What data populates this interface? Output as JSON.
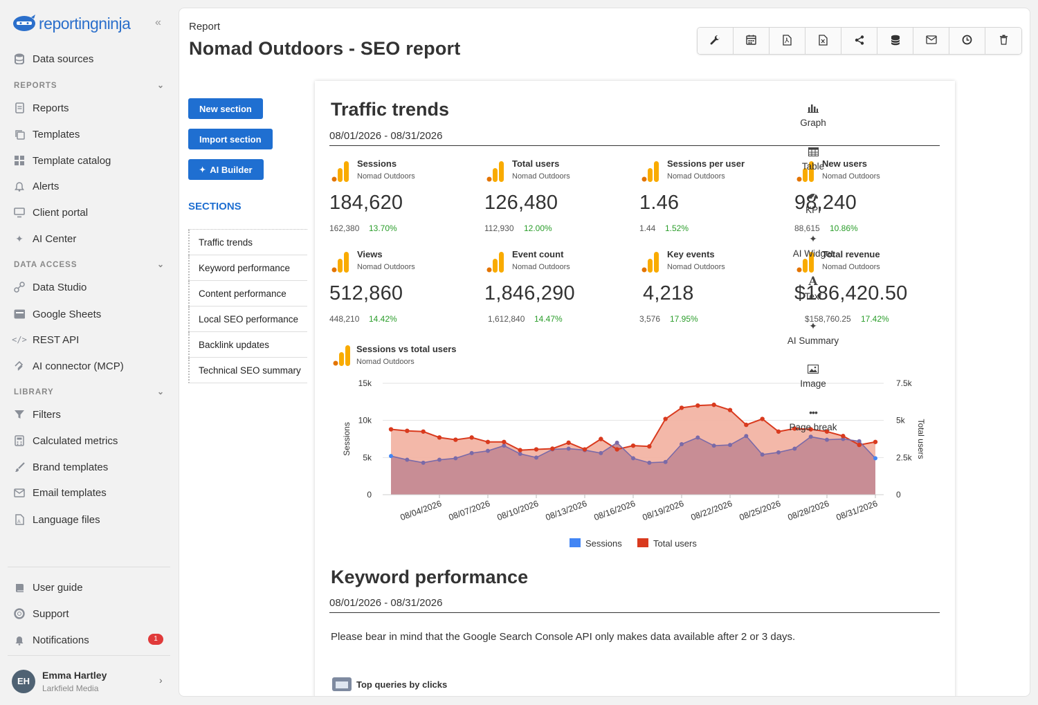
{
  "brand": {
    "name": "reportingninja"
  },
  "sidebar": {
    "top_items": [
      {
        "label": "Data sources",
        "icon": "database-icon"
      }
    ],
    "reports_header": "REPORTS",
    "reports_items": [
      {
        "label": "Reports",
        "icon": "document-icon"
      },
      {
        "label": "Templates",
        "icon": "copy-icon"
      },
      {
        "label": "Template catalog",
        "icon": "grid-icon"
      },
      {
        "label": "Alerts",
        "icon": "bell-icon"
      },
      {
        "label": "Client portal",
        "icon": "monitor-icon"
      },
      {
        "label": "AI Center",
        "icon": "sparkle-icon"
      }
    ],
    "data_access_header": "DATA ACCESS",
    "data_access_items": [
      {
        "label": "Data Studio",
        "icon": "data-studio-icon"
      },
      {
        "label": "Google Sheets",
        "icon": "sheets-icon"
      },
      {
        "label": "REST API",
        "icon": "code-icon"
      },
      {
        "label": "AI connector (MCP)",
        "icon": "mcp-icon"
      }
    ],
    "library_header": "LIBRARY",
    "library_items": [
      {
        "label": "Filters",
        "icon": "filter-icon"
      },
      {
        "label": "Calculated metrics",
        "icon": "calculator-icon"
      },
      {
        "label": "Brand templates",
        "icon": "brush-icon"
      },
      {
        "label": "Email templates",
        "icon": "envelope-icon"
      },
      {
        "label": "Language files",
        "icon": "language-icon"
      }
    ],
    "bottom_items": [
      {
        "label": "User guide",
        "icon": "book-icon"
      },
      {
        "label": "Support",
        "icon": "lifebuoy-icon"
      },
      {
        "label": "Notifications",
        "icon": "bell-icon"
      }
    ],
    "notifications_count": "1",
    "user": {
      "initials": "EH",
      "name": "Emma Hartley",
      "org": "Larkfield Media"
    }
  },
  "header": {
    "breadcrumb": "Report",
    "title": "Nomad Outdoors - SEO report"
  },
  "toolbar": [
    "wrench-icon",
    "calendar-icon",
    "pdf-icon",
    "excel-icon",
    "share-icon",
    "database-icon",
    "envelope-icon",
    "clock-icon",
    "trash-icon"
  ],
  "actions": {
    "new_section": "New section",
    "import_section": "Import section",
    "ai_builder": "AI Builder"
  },
  "sections": {
    "title": "SECTIONS",
    "items": [
      "Traffic trends",
      "Keyword performance",
      "Content performance",
      "Local SEO performance",
      "Backlink updates",
      "Technical SEO summary"
    ]
  },
  "traffic": {
    "title": "Traffic trends",
    "date_range": "08/01/2026 - 08/31/2026",
    "kpis": [
      {
        "label": "Sessions",
        "source": "Nomad Outdoors",
        "value": "184,620",
        "previous": "162,380",
        "change": "13.70%"
      },
      {
        "label": "Total users",
        "source": "Nomad Outdoors",
        "value": "126,480",
        "previous": "112,930",
        "change": "12.00%"
      },
      {
        "label": "Sessions per user",
        "source": "Nomad Outdoors",
        "value": "1.46",
        "previous": "1.44",
        "change": "1.52%"
      },
      {
        "label": "New users",
        "source": "Nomad Outdoors",
        "value": "98,240",
        "previous": "88,615",
        "change": "10.86%"
      },
      {
        "label": "Views",
        "source": "Nomad Outdoors",
        "value": "512,860",
        "previous": "448,210",
        "change": "14.42%"
      },
      {
        "label": "Event count",
        "source": "Nomad Outdoors",
        "value": "1,846,290",
        "previous": "1,612,840",
        "change": "14.47%"
      },
      {
        "label": "Key events",
        "source": "Nomad Outdoors",
        "value": "4,218",
        "previous": "3,576",
        "change": "17.95%"
      },
      {
        "label": "Total revenue",
        "source": "Nomad Outdoors",
        "value": "$186,420.50",
        "previous": "$158,760.25",
        "change": "17.42%"
      }
    ],
    "chart": {
      "title": "Sessions vs total users",
      "source": "Nomad Outdoors"
    }
  },
  "keyword": {
    "title": "Keyword performance",
    "date_range": "08/01/2026 - 08/31/2026",
    "note": "Please bear in mind that the Google Search Console API only makes data available after 2 or 3 days.",
    "sub_widget": "Top queries by clicks"
  },
  "widgets": [
    {
      "label": "Graph",
      "icon": "bar-chart-icon"
    },
    {
      "label": "Table",
      "icon": "table-icon"
    },
    {
      "label": "KPI",
      "icon": "gauge-icon"
    },
    {
      "label": "AI Widget",
      "icon": "sparkle-icon"
    },
    {
      "label": "Text",
      "icon": "text-icon"
    },
    {
      "label": "AI Summary",
      "icon": "sparkle-icon"
    },
    {
      "label": "Image",
      "icon": "image-icon"
    },
    {
      "label": "Page break",
      "icon": "dots-icon"
    }
  ],
  "colors": {
    "accent": "#1f6fd1",
    "sessions": "#4285f4",
    "total_users": "#d93a1e",
    "positive": "#2a9d2a",
    "area_total": "#f2b4a4",
    "area_sessions": "#c58a93"
  },
  "chart_data": {
    "type": "area",
    "title": "Sessions vs total users",
    "x": [
      "08/01/2026",
      "08/02/2026",
      "08/03/2026",
      "08/04/2026",
      "08/05/2026",
      "08/06/2026",
      "08/07/2026",
      "08/08/2026",
      "08/09/2026",
      "08/10/2026",
      "08/11/2026",
      "08/12/2026",
      "08/13/2026",
      "08/14/2026",
      "08/15/2026",
      "08/16/2026",
      "08/17/2026",
      "08/18/2026",
      "08/19/2026",
      "08/20/2026",
      "08/21/2026",
      "08/22/2026",
      "08/23/2026",
      "08/24/2026",
      "08/25/2026",
      "08/26/2026",
      "08/27/2026",
      "08/28/2026",
      "08/29/2026",
      "08/30/2026",
      "08/31/2026"
    ],
    "x_tick_labels": [
      "08/04/2026",
      "08/07/2026",
      "08/10/2026",
      "08/13/2026",
      "08/16/2026",
      "08/19/2026",
      "08/22/2026",
      "08/25/2026",
      "08/28/2026",
      "08/31/2026"
    ],
    "series": [
      {
        "name": "Sessions",
        "axis": "left",
        "values": [
          5200,
          4700,
          4300,
          4700,
          4900,
          5600,
          5900,
          6600,
          5500,
          5000,
          6100,
          6200,
          6000,
          5600,
          7000,
          4900,
          4300,
          4400,
          6800,
          7700,
          6600,
          6700,
          7900,
          5400,
          5700,
          6200,
          7800,
          7400,
          7500,
          7200,
          4900
        ]
      },
      {
        "name": "Total users",
        "axis": "right",
        "values": [
          4400,
          4300,
          4250,
          3850,
          3700,
          3850,
          3550,
          3550,
          3000,
          3050,
          3100,
          3500,
          3050,
          3750,
          3050,
          3300,
          3250,
          5100,
          5850,
          6000,
          6050,
          5700,
          4700,
          5100,
          4250,
          4450,
          4400,
          4250,
          3950,
          3350,
          3550
        ]
      }
    ],
    "y_left": {
      "label": "Sessions",
      "range": [
        0,
        15000
      ],
      "ticks": [
        "0",
        "5k",
        "10k",
        "15k"
      ]
    },
    "y_right": {
      "label": "Total users",
      "range": [
        0,
        7500
      ],
      "ticks": [
        "0",
        "2.5k",
        "5k",
        "7.5k"
      ]
    },
    "legend": {
      "position": "bottom",
      "items": [
        "Sessions",
        "Total users"
      ]
    },
    "grid": true
  }
}
